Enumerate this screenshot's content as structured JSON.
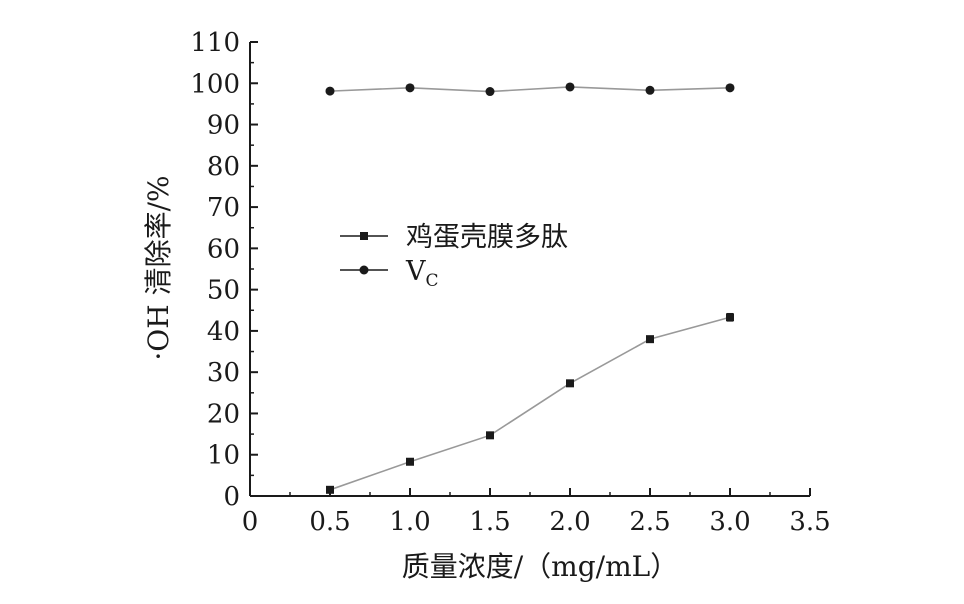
{
  "chart_data": {
    "type": "line",
    "title": "",
    "xlabel": "质量浓度/（mg/mL）",
    "ylabel": "·OH 清除率/%",
    "xlim": [
      0,
      3.5
    ],
    "ylim": [
      0,
      110
    ],
    "x_ticks": [
      "0",
      "0.5",
      "1.0",
      "1.5",
      "2.0",
      "2.5",
      "3.0",
      "3.5"
    ],
    "y_ticks": [
      "0",
      "10",
      "20",
      "30",
      "40",
      "50",
      "60",
      "70",
      "80",
      "90",
      "100",
      "110"
    ],
    "x": [
      0.5,
      1.0,
      1.5,
      2.0,
      2.5,
      3.0
    ],
    "grid": false,
    "legend_position": "center-left",
    "series": [
      {
        "name": "鸡蛋壳膜多肽",
        "marker": "square",
        "values": [
          1.5,
          8.3,
          14.7,
          27.3,
          38.0,
          43.3
        ],
        "errors": [
          0.3,
          0.4,
          0.4,
          0.6,
          0.4,
          0.9
        ]
      },
      {
        "name": "V",
        "name_subscript": "C",
        "marker": "circle",
        "values": [
          98.1,
          98.9,
          98.0,
          99.1,
          98.3,
          98.9
        ],
        "errors": [
          0.4,
          0.3,
          0.3,
          0.4,
          0.5,
          0.3
        ]
      }
    ],
    "colors": {
      "line": "#999999",
      "marker": "#1a1a1a",
      "axis": "#1a1a1a"
    }
  }
}
